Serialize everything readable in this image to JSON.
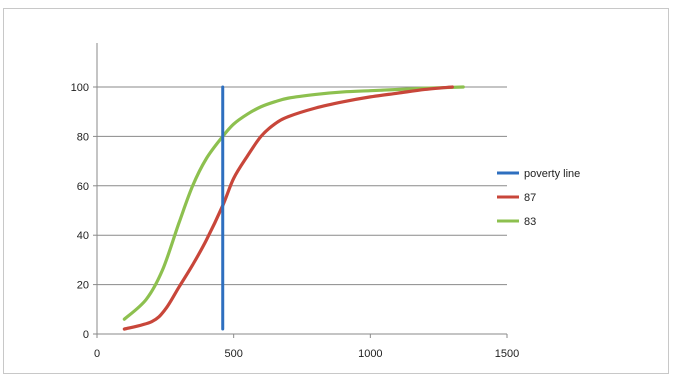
{
  "chart_data": {
    "type": "line",
    "xlim": [
      0,
      1500
    ],
    "ylim": [
      0,
      100
    ],
    "x_ticks": [
      "0",
      "500",
      "1000",
      "1500"
    ],
    "y_ticks": [
      "0",
      "20",
      "40",
      "60",
      "80",
      "100"
    ],
    "grid": "horizontal",
    "legend": "right",
    "series": [
      {
        "name": "poverty line",
        "color": "#2e6fbf",
        "points": [
          [
            460,
            2
          ],
          [
            460,
            100
          ]
        ]
      },
      {
        "name": "87",
        "color": "#c8463a",
        "points": [
          [
            100,
            2
          ],
          [
            200,
            5
          ],
          [
            250,
            10
          ],
          [
            300,
            19
          ],
          [
            350,
            28
          ],
          [
            400,
            38
          ],
          [
            460,
            52
          ],
          [
            500,
            63
          ],
          [
            550,
            72
          ],
          [
            600,
            80
          ],
          [
            650,
            85
          ],
          [
            700,
            88
          ],
          [
            800,
            91.5
          ],
          [
            900,
            94
          ],
          [
            1000,
            96
          ],
          [
            1100,
            97.5
          ],
          [
            1200,
            99
          ],
          [
            1300,
            100
          ]
        ]
      },
      {
        "name": "83",
        "color": "#8dc04f",
        "points": [
          [
            100,
            6
          ],
          [
            180,
            14
          ],
          [
            240,
            26
          ],
          [
            300,
            45
          ],
          [
            350,
            60
          ],
          [
            400,
            71
          ],
          [
            460,
            80
          ],
          [
            500,
            85
          ],
          [
            550,
            89
          ],
          [
            600,
            92
          ],
          [
            650,
            94
          ],
          [
            700,
            95.5
          ],
          [
            800,
            97
          ],
          [
            900,
            98
          ],
          [
            1000,
            98.5
          ],
          [
            1100,
            99
          ],
          [
            1200,
            99.5
          ],
          [
            1340,
            100
          ]
        ]
      }
    ]
  }
}
